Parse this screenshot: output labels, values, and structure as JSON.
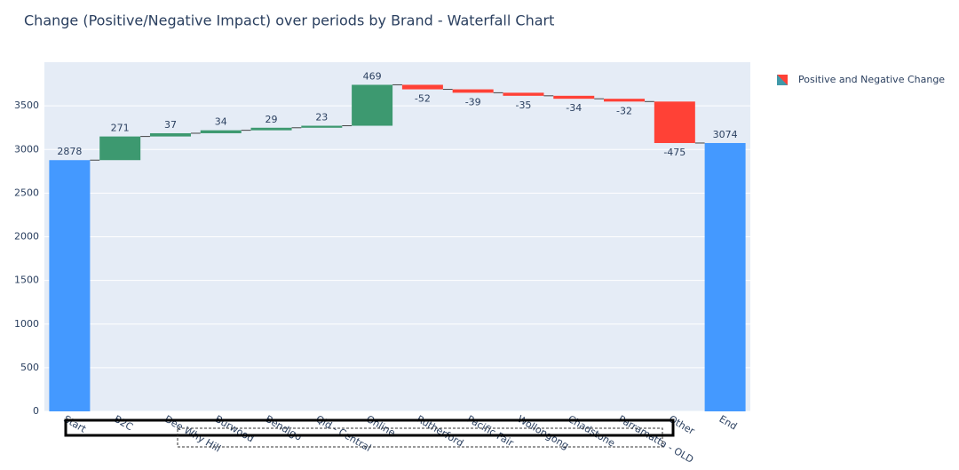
{
  "chart_data": {
    "type": "waterfall",
    "title": "Change (Positive/Negative Impact) over periods by Brand - Waterfall Chart",
    "name": "Positive and Negative Change",
    "categories": [
      "Start",
      "B2C",
      "Dee Why Hill",
      "Burwood",
      "Bendigo",
      "Qld - Central",
      "Online",
      "Rutherford",
      "Pacific Fair",
      "Wollongong",
      "Chadstone",
      "Parramatta - OLD",
      "Other",
      "End"
    ],
    "measure": [
      "absolute",
      "relative",
      "relative",
      "relative",
      "relative",
      "relative",
      "relative",
      "relative",
      "relative",
      "relative",
      "relative",
      "relative",
      "relative",
      "total"
    ],
    "values": [
      2878,
      271,
      37,
      34,
      29,
      23,
      469,
      -52,
      -39,
      -35,
      -34,
      -32,
      -475,
      3074
    ],
    "increasing_color": "#3d9970",
    "decreasing_color": "#ff4136",
    "total_color": "#4499ff",
    "ylim": [
      0,
      4000
    ],
    "yticks": [
      0,
      500,
      1000,
      1500,
      2000,
      2500,
      3000,
      3500
    ],
    "grid": true
  }
}
